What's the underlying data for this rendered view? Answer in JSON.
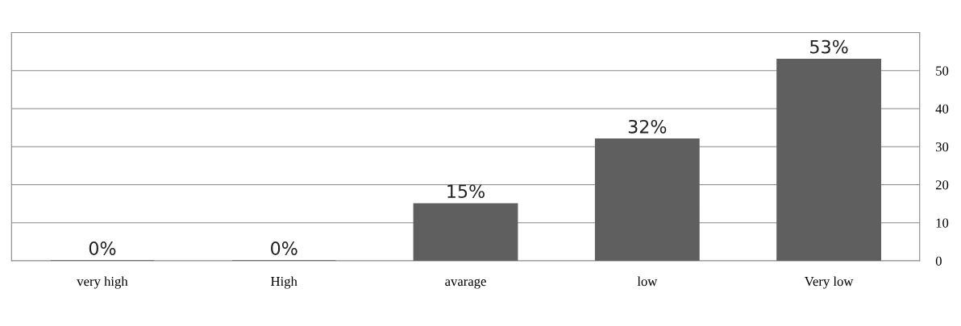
{
  "chart_data": {
    "type": "bar",
    "categories": [
      "very high",
      "High",
      "avarage",
      "low",
      "Very low"
    ],
    "values": [
      0,
      0,
      15,
      32,
      53
    ],
    "value_labels": [
      "0%",
      "0%",
      "15%",
      "32%",
      "53%"
    ],
    "color": "#5f5f5f",
    "ylim": [
      0,
      60
    ],
    "yticks": [
      0,
      10,
      20,
      30,
      40,
      50,
      {
        "value": 60,
        "label": null
      }
    ],
    "grid": "y",
    "legend": false
  }
}
